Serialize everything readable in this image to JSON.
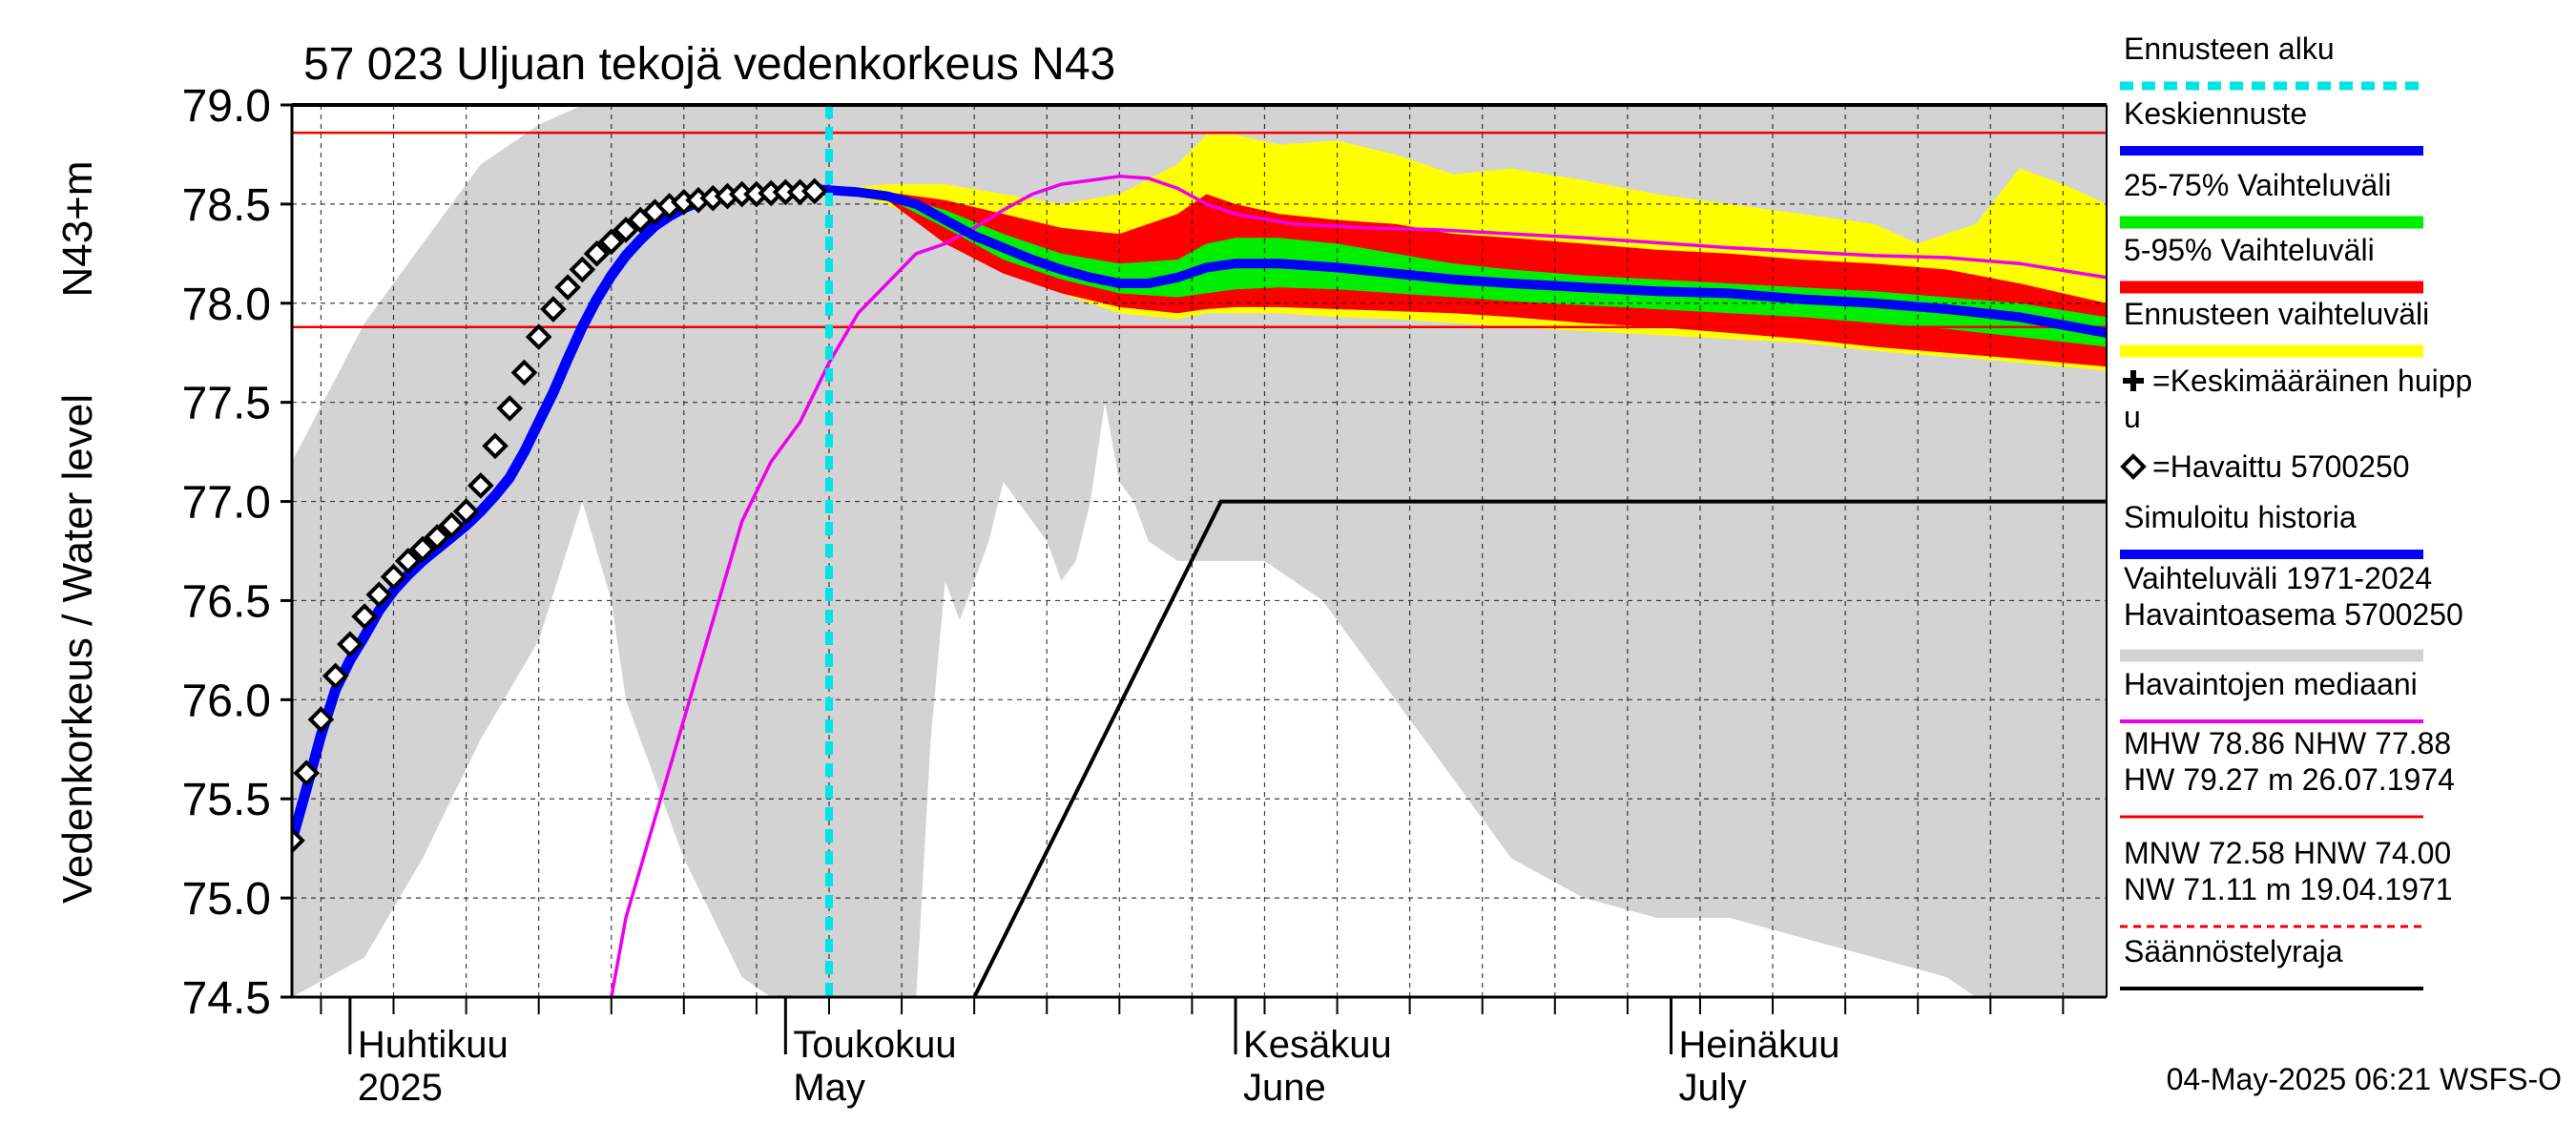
{
  "chart_data": {
    "type": "line",
    "title": "57 023 Uljuan tekojä vedenkorkeus N43",
    "ylabel": "Vedenkorkeus / Water level",
    "ylabel_unit": "N43+m",
    "ylim": [
      74.5,
      79.0
    ],
    "y_ticks": [
      "79.0",
      "78.5",
      "78.0",
      "77.5",
      "77.0",
      "76.5",
      "76.0",
      "75.5",
      "75.0",
      "74.5"
    ],
    "x_range": [
      "2025-03-28",
      "2025-07-31"
    ],
    "x_month_labels": [
      {
        "date": "2025-04-01",
        "line1": "Huhtikuu",
        "line2": "2025"
      },
      {
        "date": "2025-05-01",
        "line1": "Toukokuu",
        "line2": "May"
      },
      {
        "date": "2025-06-01",
        "line1": "Kesäkuu",
        "line2": "June"
      },
      {
        "date": "2025-07-01",
        "line1": "Heinäkuu",
        "line2": "July"
      }
    ],
    "grid": true,
    "forecast_start": "2025-05-04",
    "reference_lines": {
      "MHW": 78.86,
      "NHW": 77.88
    },
    "colors": {
      "forecast_start": "#00e5e5",
      "median_forecast": "#0000ff",
      "band_25_75": "#00ee00",
      "band_5_95": "#ff0000",
      "band_range": "#ffff00",
      "observed_median": "#ee00ee",
      "history_range": "#d3d3d3",
      "regulation_limit": "#000000",
      "reference": "#ee0000"
    },
    "history_band": {
      "x": [
        "2025-03-28",
        "2025-04-02",
        "2025-04-06",
        "2025-04-10",
        "2025-04-14",
        "2025-04-17",
        "2025-04-19",
        "2025-04-20",
        "2025-04-22",
        "2025-04-24",
        "2025-04-26",
        "2025-04-28",
        "2025-04-30",
        "2025-05-02",
        "2025-05-04",
        "2025-05-06",
        "2025-05-08",
        "2025-05-10",
        "2025-05-11",
        "2025-05-12",
        "2025-05-13",
        "2025-05-14",
        "2025-05-15",
        "2025-05-16",
        "2025-05-17",
        "2025-05-18",
        "2025-05-19",
        "2025-05-20",
        "2025-05-21",
        "2025-05-22",
        "2025-05-23",
        "2025-05-24",
        "2025-05-25",
        "2025-05-26",
        "2025-05-28",
        "2025-05-30",
        "2025-06-01",
        "2025-06-03",
        "2025-06-05",
        "2025-06-07",
        "2025-06-09",
        "2025-06-12",
        "2025-06-16",
        "2025-06-20",
        "2025-06-25",
        "2025-06-30",
        "2025-07-05",
        "2025-07-10",
        "2025-07-15",
        "2025-07-20",
        "2025-07-22",
        "2025-07-25",
        "2025-07-31"
      ],
      "upper": [
        77.2,
        77.9,
        78.3,
        78.7,
        78.9,
        79.0,
        79.0,
        79.0,
        79.0,
        79.0,
        79.0,
        79.0,
        79.0,
        79.0,
        79.0,
        79.0,
        79.0,
        79.0,
        79.0,
        79.0,
        79.0,
        79.0,
        79.0,
        79.0,
        79.0,
        79.0,
        79.0,
        79.0,
        79.0,
        79.0,
        79.0,
        79.0,
        79.0,
        79.0,
        79.0,
        79.0,
        79.0,
        79.0,
        79.0,
        79.0,
        79.0,
        79.0,
        79.0,
        79.0,
        79.0,
        79.0,
        79.0,
        79.0,
        79.0,
        79.0,
        79.0,
        79.0,
        79.0
      ],
      "lower": [
        74.5,
        74.7,
        75.2,
        75.8,
        76.3,
        77.0,
        76.5,
        76.0,
        75.6,
        75.2,
        74.9,
        74.6,
        74.5,
        74.5,
        74.5,
        74.5,
        74.5,
        74.5,
        75.8,
        76.6,
        76.4,
        76.6,
        76.8,
        77.1,
        77.0,
        76.9,
        76.8,
        76.6,
        76.7,
        77.0,
        77.5,
        77.1,
        77.0,
        76.8,
        76.7,
        76.7,
        76.7,
        76.7,
        76.6,
        76.5,
        76.3,
        76.0,
        75.6,
        75.2,
        75.0,
        74.9,
        74.9,
        74.8,
        74.7,
        74.6,
        74.5,
        74.5,
        74.5
      ]
    },
    "regulation_limit": {
      "x": [
        "2025-05-14",
        "2025-05-31",
        "2025-07-31"
      ],
      "y": [
        74.5,
        77.0,
        77.0
      ]
    },
    "observed_median": {
      "name": "Havaintojen mediaani",
      "x": [
        "2025-04-19",
        "2025-04-20",
        "2025-04-22",
        "2025-04-24",
        "2025-04-26",
        "2025-04-28",
        "2025-04-30",
        "2025-05-02",
        "2025-05-04",
        "2025-05-06",
        "2025-05-08",
        "2025-05-10",
        "2025-05-12",
        "2025-05-14",
        "2025-05-16",
        "2025-05-18",
        "2025-05-20",
        "2025-05-22",
        "2025-05-24",
        "2025-05-26",
        "2025-05-28",
        "2025-05-30",
        "2025-06-01",
        "2025-06-05",
        "2025-06-10",
        "2025-06-15",
        "2025-06-20",
        "2025-06-25",
        "2025-07-01",
        "2025-07-05",
        "2025-07-10",
        "2025-07-15",
        "2025-07-20",
        "2025-07-25",
        "2025-07-31"
      ],
      "y": [
        74.5,
        74.9,
        75.4,
        75.9,
        76.4,
        76.9,
        77.2,
        77.4,
        77.7,
        77.95,
        78.1,
        78.25,
        78.3,
        78.38,
        78.47,
        78.55,
        78.6,
        78.62,
        78.64,
        78.63,
        78.58,
        78.5,
        78.45,
        78.4,
        78.38,
        78.37,
        78.35,
        78.33,
        78.3,
        78.28,
        78.26,
        78.24,
        78.23,
        78.2,
        78.13
      ]
    },
    "band_range": {
      "x": [
        "2025-05-04",
        "2025-05-08",
        "2025-05-12",
        "2025-05-16",
        "2025-05-20",
        "2025-05-24",
        "2025-05-28",
        "2025-05-30",
        "2025-06-01",
        "2025-06-04",
        "2025-06-08",
        "2025-06-12",
        "2025-06-16",
        "2025-06-20",
        "2025-06-25",
        "2025-06-30",
        "2025-07-05",
        "2025-07-10",
        "2025-07-15",
        "2025-07-18",
        "2025-07-22",
        "2025-07-25",
        "2025-07-28",
        "2025-07-31"
      ],
      "upper": [
        78.57,
        78.6,
        78.6,
        78.55,
        78.5,
        78.55,
        78.7,
        78.85,
        78.85,
        78.8,
        78.82,
        78.75,
        78.65,
        78.68,
        78.62,
        78.55,
        78.5,
        78.45,
        78.4,
        78.3,
        78.4,
        78.68,
        78.6,
        78.5
      ],
      "lower": [
        78.57,
        78.5,
        78.35,
        78.2,
        78.05,
        77.95,
        77.92,
        77.95,
        77.95,
        77.95,
        77.93,
        77.92,
        77.9,
        77.88,
        77.86,
        77.84,
        77.82,
        77.8,
        77.76,
        77.74,
        77.72,
        77.7,
        77.68,
        77.66
      ]
    },
    "band_5_95": {
      "x": [
        "2025-05-04",
        "2025-05-08",
        "2025-05-12",
        "2025-05-16",
        "2025-05-20",
        "2025-05-24",
        "2025-05-28",
        "2025-05-30",
        "2025-06-01",
        "2025-06-04",
        "2025-06-08",
        "2025-06-12",
        "2025-06-16",
        "2025-06-20",
        "2025-06-25",
        "2025-06-30",
        "2025-07-05",
        "2025-07-10",
        "2025-07-15",
        "2025-07-20",
        "2025-07-25",
        "2025-07-31"
      ],
      "upper": [
        78.57,
        78.56,
        78.52,
        78.45,
        78.38,
        78.35,
        78.45,
        78.55,
        78.5,
        78.45,
        78.42,
        78.4,
        78.35,
        78.33,
        78.3,
        78.27,
        78.25,
        78.22,
        78.2,
        78.17,
        78.1,
        78.0
      ],
      "lower": [
        78.57,
        78.52,
        78.3,
        78.15,
        78.05,
        77.98,
        77.95,
        77.97,
        77.98,
        77.98,
        77.97,
        77.96,
        77.95,
        77.93,
        77.9,
        77.88,
        77.85,
        77.82,
        77.78,
        77.75,
        77.72,
        77.68
      ]
    },
    "band_25_75": {
      "x": [
        "2025-05-04",
        "2025-05-08",
        "2025-05-12",
        "2025-05-16",
        "2025-05-20",
        "2025-05-24",
        "2025-05-28",
        "2025-05-30",
        "2025-06-01",
        "2025-06-04",
        "2025-06-08",
        "2025-06-12",
        "2025-06-16",
        "2025-06-20",
        "2025-06-25",
        "2025-06-30",
        "2025-07-05",
        "2025-07-10",
        "2025-07-15",
        "2025-07-20",
        "2025-07-25",
        "2025-07-31"
      ],
      "upper": [
        78.57,
        78.55,
        78.47,
        78.35,
        78.25,
        78.2,
        78.22,
        78.3,
        78.33,
        78.33,
        78.3,
        78.25,
        78.2,
        78.17,
        78.14,
        78.12,
        78.1,
        78.08,
        78.06,
        78.03,
        78.0,
        77.93
      ],
      "lower": [
        78.57,
        78.53,
        78.38,
        78.22,
        78.12,
        78.05,
        78.03,
        78.05,
        78.07,
        78.08,
        78.07,
        78.05,
        78.03,
        78.01,
        77.99,
        77.97,
        77.95,
        77.93,
        77.9,
        77.87,
        77.83,
        77.78
      ]
    },
    "median_forecast": {
      "name": "Keskiennuste",
      "x": [
        "2025-05-04",
        "2025-05-06",
        "2025-05-08",
        "2025-05-10",
        "2025-05-12",
        "2025-05-14",
        "2025-05-16",
        "2025-05-18",
        "2025-05-20",
        "2025-05-22",
        "2025-05-24",
        "2025-05-26",
        "2025-05-28",
        "2025-05-30",
        "2025-06-01",
        "2025-06-04",
        "2025-06-08",
        "2025-06-12",
        "2025-06-16",
        "2025-06-20",
        "2025-06-25",
        "2025-06-30",
        "2025-07-05",
        "2025-07-10",
        "2025-07-15",
        "2025-07-20",
        "2025-07-25",
        "2025-07-31"
      ],
      "y": [
        78.57,
        78.56,
        78.54,
        78.5,
        78.42,
        78.34,
        78.28,
        78.22,
        78.17,
        78.13,
        78.1,
        78.1,
        78.13,
        78.18,
        78.2,
        78.2,
        78.18,
        78.15,
        78.12,
        78.1,
        78.08,
        78.06,
        78.05,
        78.02,
        78.0,
        77.97,
        77.93,
        77.85
      ]
    },
    "simulated_history": {
      "name": "Simuloitu historia",
      "x": [
        "2025-03-28",
        "2025-03-29",
        "2025-03-30",
        "2025-03-31",
        "2025-04-01",
        "2025-04-02",
        "2025-04-03",
        "2025-04-04",
        "2025-04-05",
        "2025-04-06",
        "2025-04-07",
        "2025-04-08",
        "2025-04-09",
        "2025-04-10",
        "2025-04-11",
        "2025-04-12",
        "2025-04-13",
        "2025-04-14",
        "2025-04-15",
        "2025-04-16",
        "2025-04-17",
        "2025-04-18",
        "2025-04-19",
        "2025-04-20",
        "2025-04-21",
        "2025-04-22",
        "2025-04-23",
        "2025-04-24",
        "2025-04-25",
        "2025-04-26",
        "2025-04-27",
        "2025-04-28",
        "2025-04-29",
        "2025-04-30",
        "2025-05-01",
        "2025-05-02",
        "2025-05-03",
        "2025-05-04"
      ],
      "y": [
        75.29,
        75.55,
        75.82,
        76.05,
        76.2,
        76.32,
        76.45,
        76.55,
        76.63,
        76.7,
        76.76,
        76.82,
        76.88,
        76.95,
        77.03,
        77.12,
        77.25,
        77.4,
        77.55,
        77.72,
        77.88,
        78.02,
        78.14,
        78.24,
        78.32,
        78.39,
        78.44,
        78.48,
        78.51,
        78.53,
        78.54,
        78.55,
        78.555,
        78.56,
        78.565,
        78.565,
        78.57,
        78.57
      ]
    },
    "observed": {
      "name": "=Havaittu 5700250",
      "x": [
        "2025-03-28",
        "2025-03-29",
        "2025-03-30",
        "2025-03-31",
        "2025-04-01",
        "2025-04-02",
        "2025-04-03",
        "2025-04-04",
        "2025-04-05",
        "2025-04-06",
        "2025-04-07",
        "2025-04-08",
        "2025-04-09",
        "2025-04-10",
        "2025-04-11",
        "2025-04-12",
        "2025-04-13",
        "2025-04-14",
        "2025-04-15",
        "2025-04-16",
        "2025-04-17",
        "2025-04-18",
        "2025-04-19",
        "2025-04-20",
        "2025-04-21",
        "2025-04-22",
        "2025-04-23",
        "2025-04-24",
        "2025-04-25",
        "2025-04-26",
        "2025-04-27",
        "2025-04-28",
        "2025-04-29",
        "2025-04-30",
        "2025-05-01",
        "2025-05-02",
        "2025-05-03"
      ],
      "y": [
        75.29,
        75.63,
        75.9,
        76.12,
        76.28,
        76.42,
        76.53,
        76.62,
        76.7,
        76.76,
        76.82,
        76.88,
        76.95,
        77.08,
        77.28,
        77.47,
        77.65,
        77.83,
        77.97,
        78.08,
        78.17,
        78.25,
        78.31,
        78.37,
        78.42,
        78.46,
        78.49,
        78.51,
        78.52,
        78.53,
        78.54,
        78.55,
        78.55,
        78.555,
        78.56,
        78.56,
        78.565
      ]
    }
  },
  "legend": [
    {
      "label": "Ennusteen alku",
      "style": "dash",
      "color": "#00e5e5"
    },
    {
      "label": "Keskiennuste",
      "style": "line",
      "color": "#0000ff"
    },
    {
      "label": "25-75% Vaihteluväli",
      "style": "band",
      "color": "#00ee00"
    },
    {
      "label": "5-95% Vaihteluväli",
      "style": "band",
      "color": "#ff0000"
    },
    {
      "label": "Ennusteen vaihteluväli",
      "style": "band",
      "color": "#ffff00"
    },
    {
      "label": "=Keskimääräinen huipp",
      "label2": "u",
      "style": "plus",
      "color": "#000000"
    },
    {
      "label": "=Havaittu 5700250",
      "style": "diamond",
      "color": "#000000"
    },
    {
      "label": "Simuloitu historia",
      "style": "line",
      "color": "#0000ff"
    },
    {
      "label": "Vaihteluväli 1971-2024",
      "label2": " Havaintoasema 5700250",
      "style": "band",
      "color": "#d3d3d3"
    },
    {
      "label": "Havaintojen mediaani",
      "style": "thin",
      "color": "#ee00ee"
    },
    {
      "label": "MHW  78.86 NHW  77.88",
      "label2": "HW  79.27 m 26.07.1974",
      "style": "thinred",
      "color": "#ee0000"
    },
    {
      "label": "MNW  72.58 HNW  74.00",
      "label2": "NW  71.11 m 19.04.1971",
      "style": "dashred",
      "color": "#ee0000"
    },
    {
      "label": "Säännöstelyraja",
      "style": "thin",
      "color": "#000000"
    }
  ],
  "footer": "04-May-2025 06:21 WSFS-O"
}
